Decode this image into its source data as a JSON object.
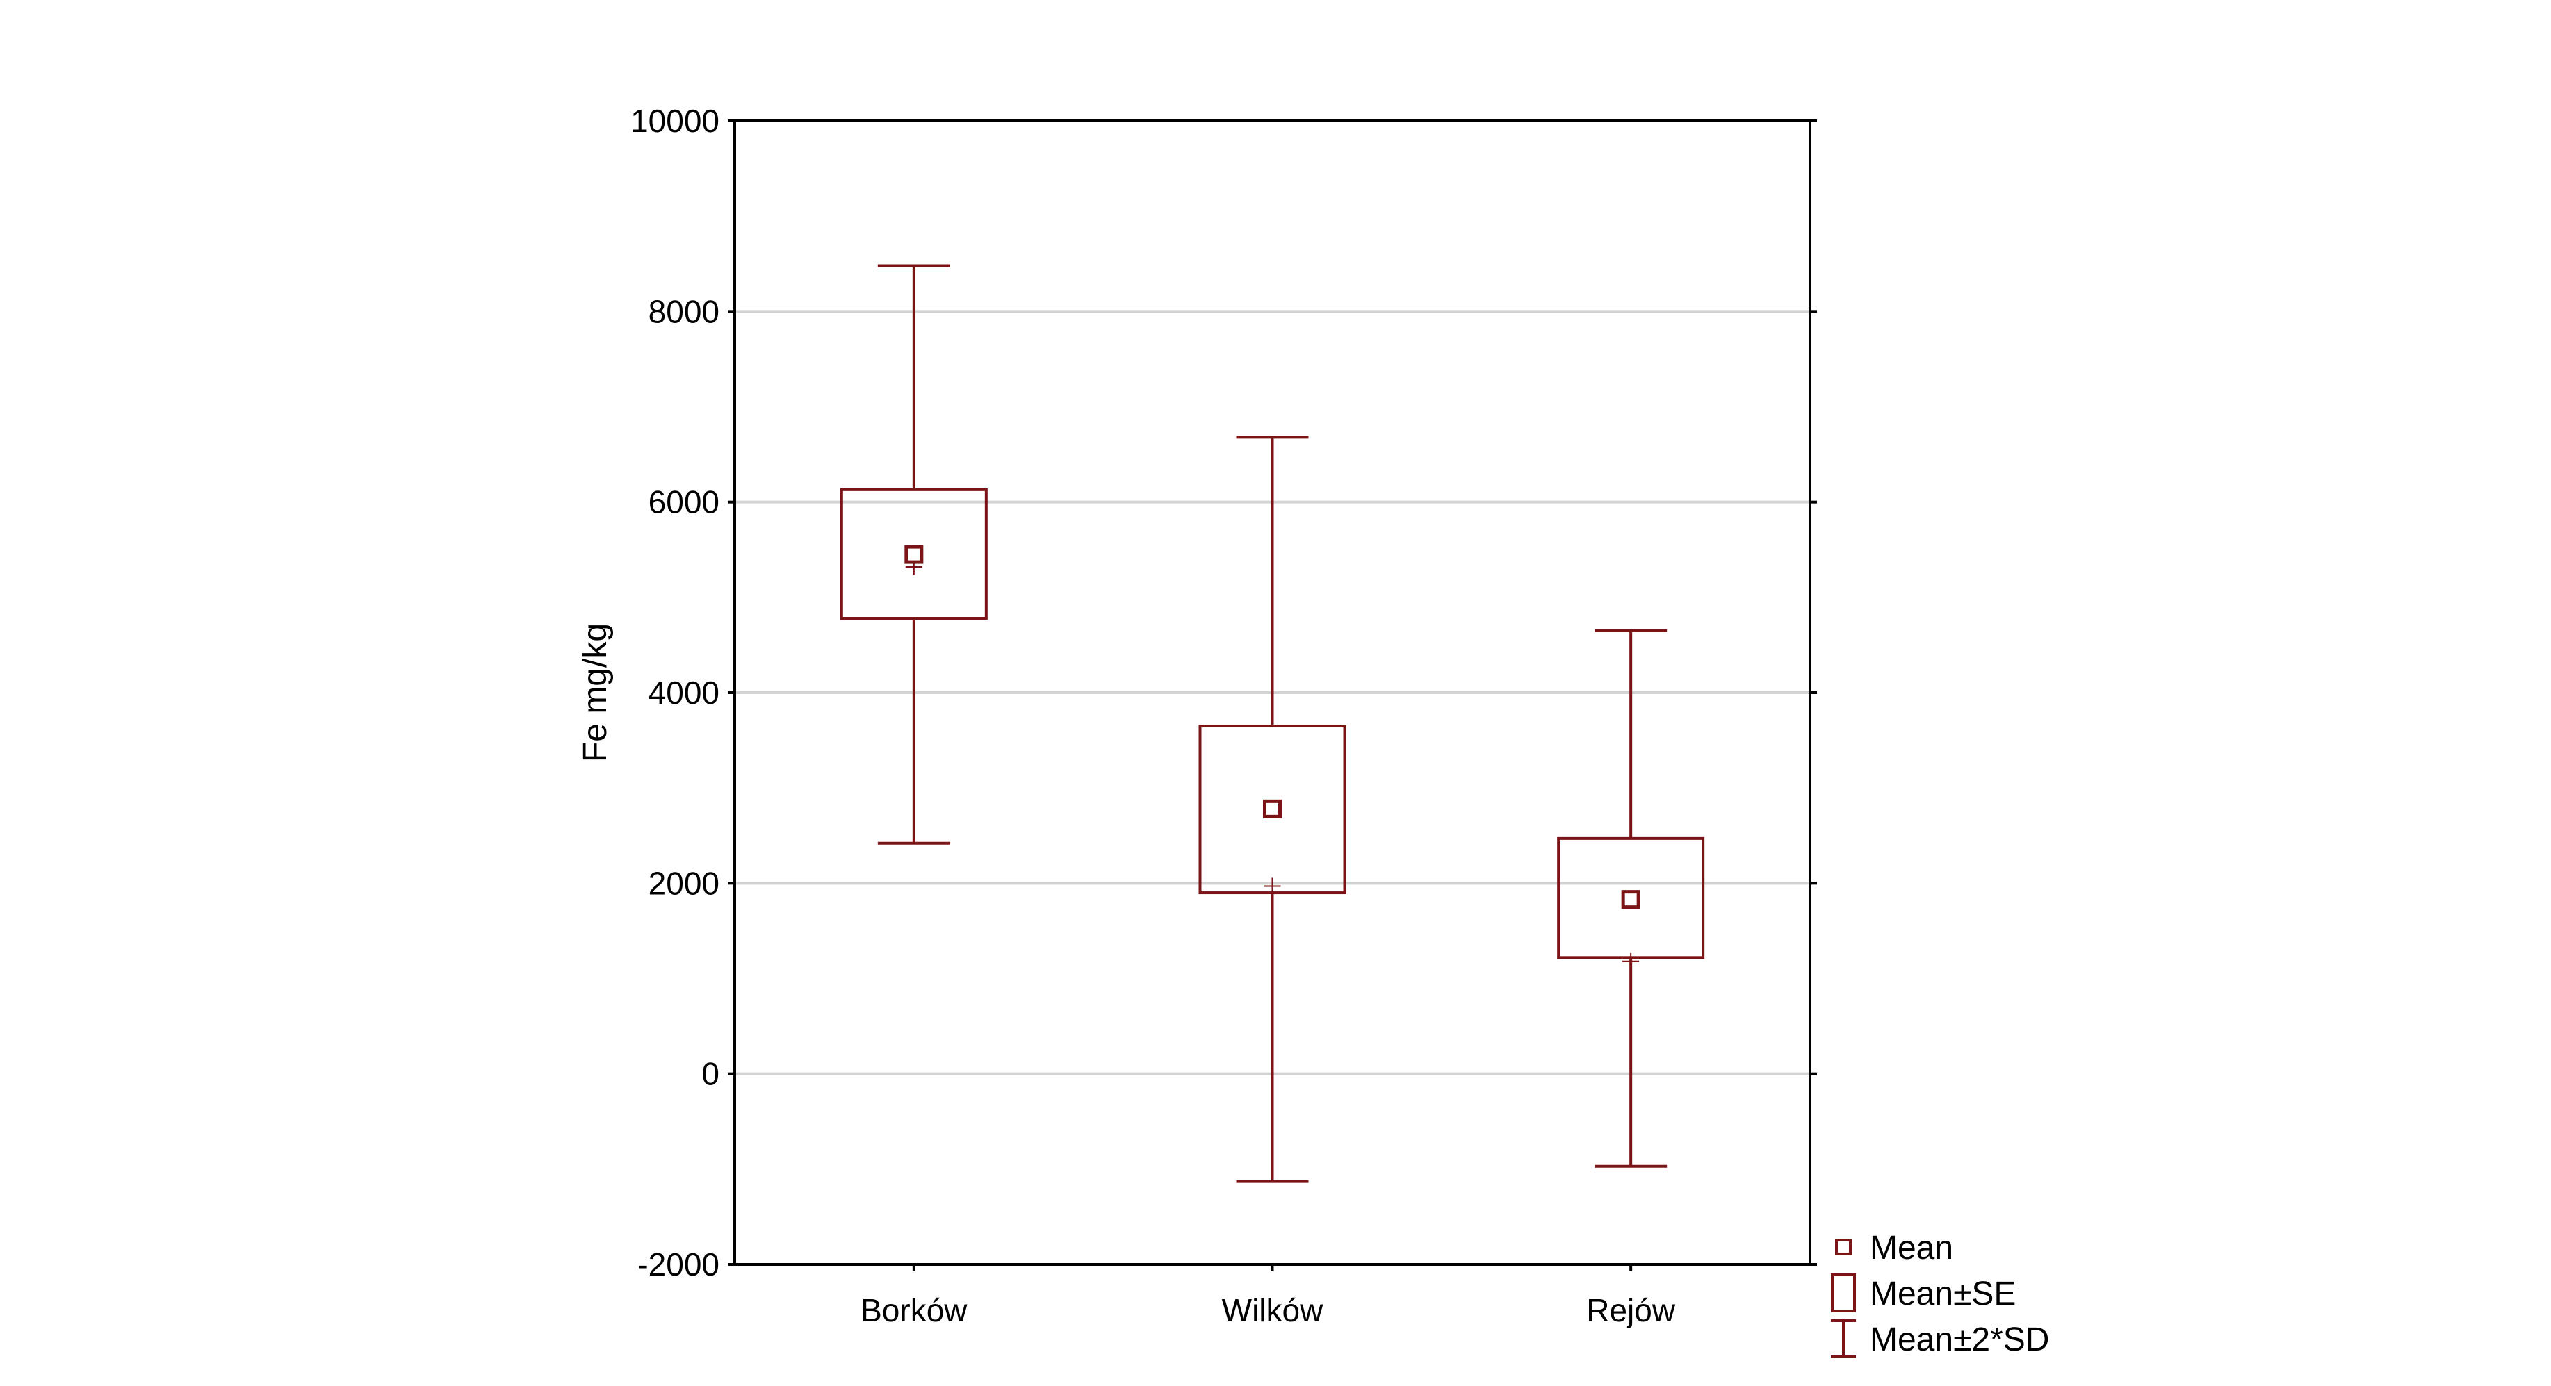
{
  "chart_data": {
    "type": "box",
    "ylabel": "Fe mg/kg",
    "xlabel": "",
    "ylim": [
      -2000,
      10000
    ],
    "yticks": [
      -2000,
      0,
      2000,
      4000,
      6000,
      8000,
      10000
    ],
    "grid": true,
    "legend_position": "bottom-right, outside plot",
    "color": "#7b1416",
    "categories": [
      "Borków",
      "Wilków",
      "Rejów"
    ],
    "mean": [
      5450,
      2780,
      1830
    ],
    "se_low": [
      4780,
      1900,
      1220
    ],
    "se_high": [
      6130,
      3650,
      2470
    ],
    "sd2_low": [
      2420,
      -1130,
      -970
    ],
    "sd2_high": [
      8480,
      6680,
      4650
    ],
    "median": [
      5320,
      1970,
      1180
    ],
    "legend": [
      {
        "symbol": "mean-marker",
        "label": "Mean"
      },
      {
        "symbol": "se-box",
        "label": "Mean±SE"
      },
      {
        "symbol": "whisker",
        "label": "Mean±2*SD"
      }
    ]
  }
}
